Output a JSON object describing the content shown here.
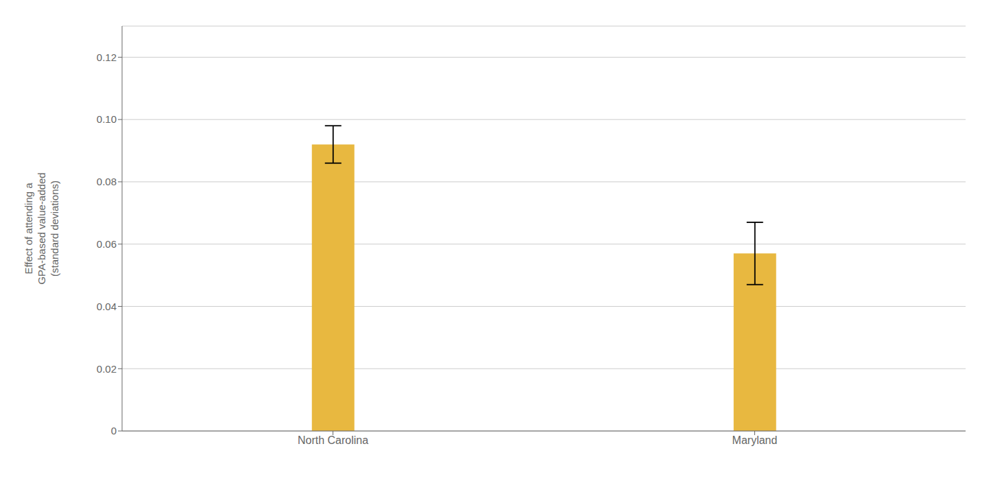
{
  "chart_data": {
    "type": "bar",
    "ylabel": "Effect of attending a\nGPA-based value-added\n(standard deviations)",
    "categories": [
      "North Carolina",
      "Maryland"
    ],
    "values": [
      0.092,
      0.057
    ],
    "error_lower": [
      0.006,
      0.01
    ],
    "error_upper": [
      0.006,
      0.01
    ],
    "color": "#E8B840",
    "ylim": [
      0,
      0.13
    ],
    "yticks": [
      0,
      0.02,
      0.04,
      0.06,
      {
        "value": 0.1,
        "label": "0.10"
      },
      0.08,
      0.12
    ],
    "grid": true
  }
}
